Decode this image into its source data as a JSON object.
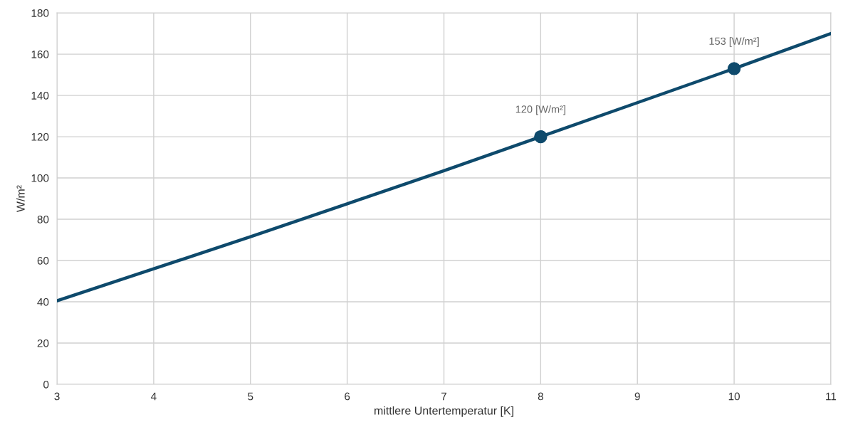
{
  "chart_data": {
    "type": "line",
    "xlabel": "mittlere Untertemperatur [K]",
    "ylabel": "W/m²",
    "series": [
      {
        "color": "#0e4a6c",
        "marker": "none",
        "x": [
          3,
          4,
          5,
          6,
          7,
          8,
          9,
          10,
          11
        ],
        "values": [
          40.5,
          56,
          71.5,
          87.5,
          103.5,
          120,
          136.5,
          153,
          170
        ]
      },
      {
        "type": "scatter",
        "marker": "circle",
        "color": "#0e4a6c",
        "x": [
          8,
          10
        ],
        "values": [
          120,
          153
        ]
      }
    ],
    "annotations": [
      {
        "text": "120 [W/m²]",
        "x": 8,
        "y": 120
      },
      {
        "text": "153 [W/m²]",
        "x": 10,
        "y": 153
      }
    ],
    "xlim": [
      3,
      11
    ],
    "xticks": [
      3,
      4,
      5,
      6,
      7,
      8,
      9,
      10,
      11
    ],
    "ylim": [
      0,
      180
    ],
    "yticks": [
      0,
      20,
      40,
      60,
      80,
      100,
      120,
      140,
      160,
      180
    ],
    "grid": true,
    "line_style": "solid"
  }
}
